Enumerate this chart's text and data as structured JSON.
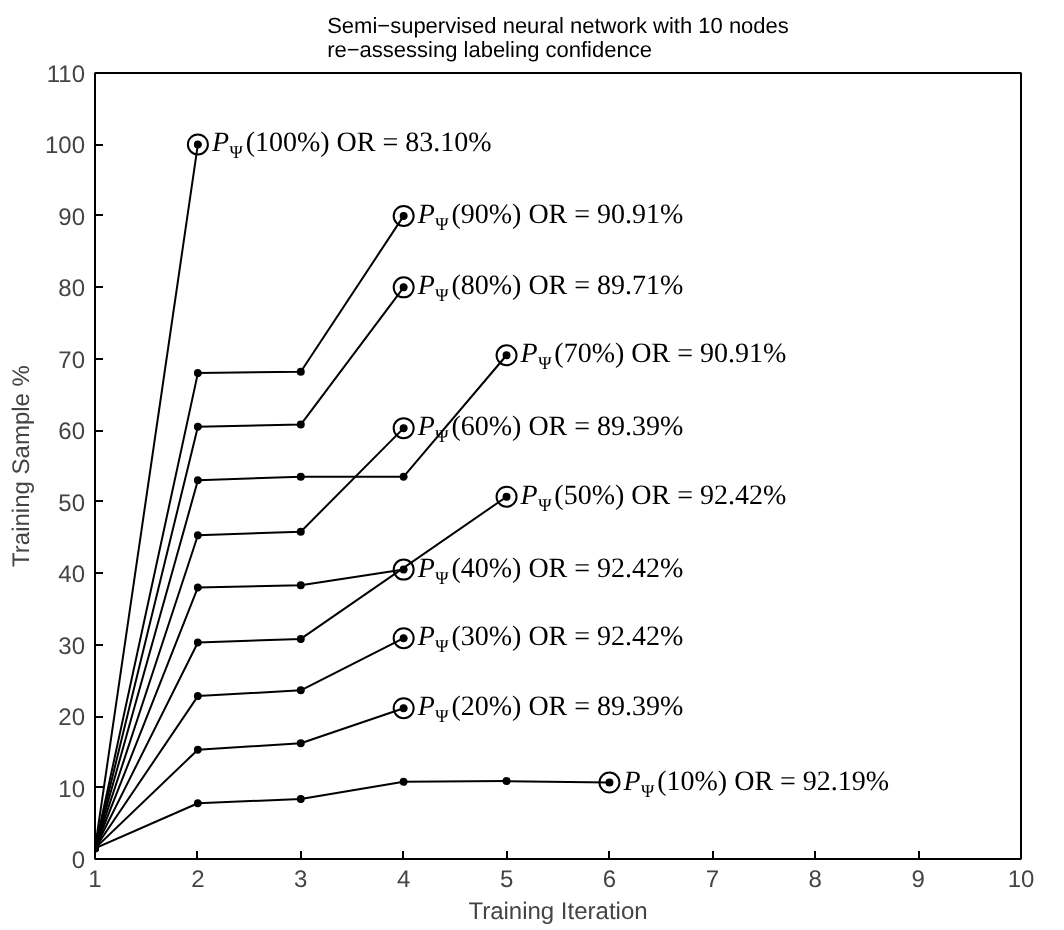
{
  "chart_data": {
    "type": "line",
    "title": "Semi−supervised neural network with 10 nodes\nre−assessing labeling confidence",
    "xlabel": "Training Iteration",
    "ylabel": "Training Sample %",
    "xlim": [
      1,
      10
    ],
    "xticks": [
      1,
      2,
      3,
      4,
      5,
      6,
      7,
      8,
      9,
      10
    ],
    "ylim": [
      0,
      110
    ],
    "yticks": [
      0,
      10,
      20,
      30,
      40,
      50,
      60,
      70,
      80,
      90,
      100,
      110
    ],
    "grid": false,
    "marker": "circle",
    "line_style": "solid",
    "series": [
      {
        "color": "#000000",
        "x": [
          1,
          2
        ],
        "values": [
          1.5,
          100
        ]
      },
      {
        "color": "#000000",
        "x": [
          1,
          2,
          3,
          4
        ],
        "values": [
          1.5,
          68,
          68.2,
          90
        ]
      },
      {
        "color": "#000000",
        "x": [
          1,
          2,
          3,
          4
        ],
        "values": [
          1.5,
          60.5,
          60.8,
          80
        ]
      },
      {
        "color": "#000000",
        "x": [
          1,
          2,
          3,
          4,
          5
        ],
        "values": [
          1.5,
          53,
          53.5,
          53.5,
          70.5
        ]
      },
      {
        "color": "#000000",
        "x": [
          1,
          2,
          3,
          4
        ],
        "values": [
          1.5,
          45.3,
          45.8,
          60.3
        ]
      },
      {
        "color": "#000000",
        "x": [
          1,
          2,
          3,
          5
        ],
        "values": [
          1.5,
          30.3,
          30.8,
          50.7
        ]
      },
      {
        "color": "#000000",
        "x": [
          1,
          2,
          3,
          4
        ],
        "values": [
          1.5,
          38,
          38.3,
          40.5
        ]
      },
      {
        "color": "#000000",
        "x": [
          1,
          2,
          3,
          4
        ],
        "values": [
          1.5,
          22.8,
          23.6,
          30.9
        ]
      },
      {
        "color": "#000000",
        "x": [
          1,
          2,
          3,
          4
        ],
        "values": [
          1.5,
          15.3,
          16.2,
          21.1
        ]
      },
      {
        "color": "#000000",
        "x": [
          1,
          2,
          3,
          4,
          5,
          6
        ],
        "values": [
          1.5,
          7.8,
          8.4,
          10.8,
          10.9,
          10.7
        ]
      }
    ],
    "annotations": [
      {
        "text": "P$_{Ψ}$(100%) OR = 83.10%",
        "x": 2,
        "y": 100
      },
      {
        "text": "P$_{Ψ}$(90%) OR = 90.91%",
        "x": 4,
        "y": 90
      },
      {
        "text": "P$_{Ψ}$(80%) OR = 89.71%",
        "x": 4,
        "y": 80
      },
      {
        "text": "P$_{Ψ}$(70%) OR = 90.91%",
        "x": 5,
        "y": 70.5
      },
      {
        "text": "P$_{Ψ}$(60%) OR = 89.39%",
        "x": 4,
        "y": 60.3
      },
      {
        "text": "P$_{Ψ}$(50%) OR = 92.42%",
        "x": 5,
        "y": 50.7
      },
      {
        "text": "P$_{Ψ}$(40%) OR = 92.42%",
        "x": 4,
        "y": 40.5
      },
      {
        "text": "P$_{Ψ}$(30%) OR = 92.42%",
        "x": 4,
        "y": 30.9
      },
      {
        "text": "P$_{Ψ}$(20%) OR = 89.39%",
        "x": 4,
        "y": 21.1
      },
      {
        "text": "P$_{Ψ}$(10%) OR = 92.19%",
        "x": 6,
        "y": 10.7
      }
    ]
  }
}
